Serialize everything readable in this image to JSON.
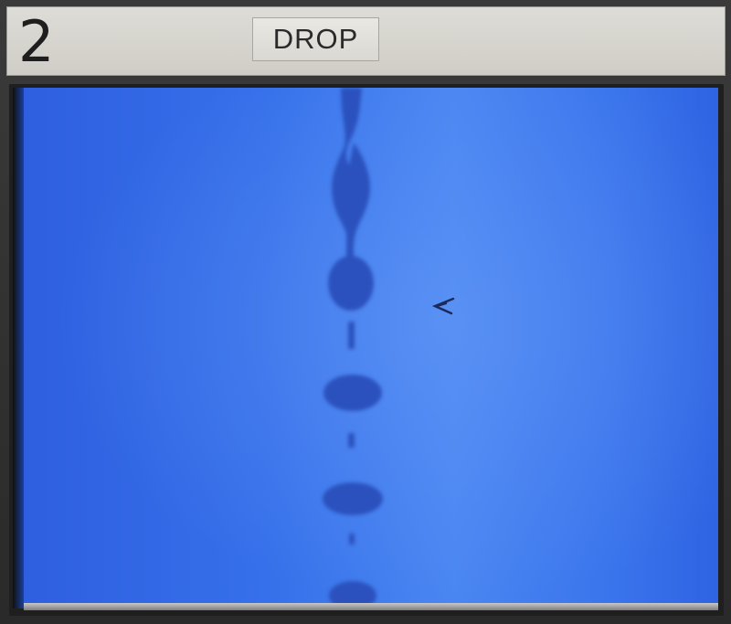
{
  "header": {
    "channel_number": "2",
    "mode_label": "DROP"
  },
  "screen": {
    "background_color": "#2f66e6",
    "droplet_color": "#2a4fb8",
    "pointer_icon": "cursor-arrow-icon"
  }
}
